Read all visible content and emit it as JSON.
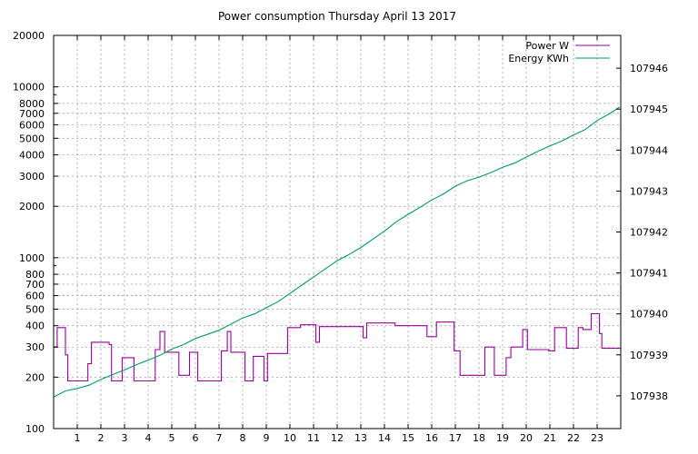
{
  "chart_data": {
    "type": "line",
    "title": "Power consumption Thursday April 13 2017",
    "x_ticks": [
      1,
      2,
      3,
      4,
      5,
      6,
      7,
      8,
      9,
      10,
      11,
      12,
      13,
      14,
      15,
      16,
      17,
      18,
      19,
      20,
      21,
      22,
      23
    ],
    "x_range": [
      0,
      24
    ],
    "y_left": {
      "scale": "log",
      "range": [
        100,
        20000
      ],
      "ticks": [
        100,
        200,
        300,
        400,
        500,
        600,
        700,
        800,
        1000,
        2000,
        3000,
        4000,
        5000,
        6000,
        7000,
        8000,
        10000,
        20000
      ]
    },
    "y_right": {
      "scale": "linear",
      "range": [
        107937.2,
        107946.8
      ],
      "ticks": [
        107938,
        107939,
        107940,
        107941,
        107942,
        107943,
        107944,
        107945,
        107946
      ]
    },
    "grid": true,
    "legend_position": "top-right",
    "series": [
      {
        "name": "Power W",
        "axis": "left",
        "color": "#990099",
        "points": [
          [
            0.0,
            300
          ],
          [
            0.15,
            300
          ],
          [
            0.15,
            390
          ],
          [
            0.5,
            390
          ],
          [
            0.5,
            270
          ],
          [
            0.6,
            270
          ],
          [
            0.6,
            190
          ],
          [
            1.45,
            190
          ],
          [
            1.45,
            240
          ],
          [
            1.6,
            240
          ],
          [
            1.6,
            320
          ],
          [
            2.35,
            320
          ],
          [
            2.35,
            310
          ],
          [
            2.45,
            310
          ],
          [
            2.45,
            190
          ],
          [
            2.9,
            190
          ],
          [
            2.9,
            260
          ],
          [
            3.4,
            260
          ],
          [
            3.4,
            190
          ],
          [
            4.3,
            190
          ],
          [
            4.3,
            290
          ],
          [
            4.5,
            290
          ],
          [
            4.5,
            370
          ],
          [
            4.7,
            370
          ],
          [
            4.7,
            280
          ],
          [
            5.3,
            280
          ],
          [
            5.3,
            205
          ],
          [
            5.75,
            205
          ],
          [
            5.75,
            280
          ],
          [
            6.1,
            280
          ],
          [
            6.1,
            190
          ],
          [
            7.1,
            190
          ],
          [
            7.1,
            285
          ],
          [
            7.35,
            285
          ],
          [
            7.35,
            370
          ],
          [
            7.5,
            370
          ],
          [
            7.5,
            280
          ],
          [
            8.1,
            280
          ],
          [
            8.1,
            190
          ],
          [
            8.45,
            190
          ],
          [
            8.45,
            265
          ],
          [
            8.9,
            265
          ],
          [
            8.9,
            190
          ],
          [
            9.05,
            190
          ],
          [
            9.05,
            275
          ],
          [
            9.9,
            275
          ],
          [
            9.9,
            390
          ],
          [
            10.45,
            390
          ],
          [
            10.45,
            405
          ],
          [
            11.1,
            405
          ],
          [
            11.1,
            320
          ],
          [
            11.25,
            320
          ],
          [
            11.25,
            395
          ],
          [
            13.1,
            395
          ],
          [
            13.1,
            340
          ],
          [
            13.25,
            340
          ],
          [
            13.25,
            415
          ],
          [
            14.45,
            415
          ],
          [
            14.45,
            400
          ],
          [
            15.8,
            400
          ],
          [
            15.8,
            345
          ],
          [
            16.2,
            345
          ],
          [
            16.2,
            420
          ],
          [
            16.95,
            420
          ],
          [
            16.95,
            285
          ],
          [
            17.2,
            285
          ],
          [
            17.2,
            205
          ],
          [
            18.25,
            205
          ],
          [
            18.25,
            300
          ],
          [
            18.65,
            300
          ],
          [
            18.65,
            205
          ],
          [
            19.15,
            205
          ],
          [
            19.15,
            260
          ],
          [
            19.35,
            260
          ],
          [
            19.35,
            300
          ],
          [
            19.85,
            300
          ],
          [
            19.85,
            380
          ],
          [
            20.05,
            380
          ],
          [
            20.05,
            290
          ],
          [
            20.95,
            290
          ],
          [
            20.95,
            285
          ],
          [
            21.2,
            285
          ],
          [
            21.2,
            390
          ],
          [
            21.7,
            390
          ],
          [
            21.7,
            295
          ],
          [
            22.2,
            295
          ],
          [
            22.2,
            390
          ],
          [
            22.4,
            390
          ],
          [
            22.4,
            380
          ],
          [
            22.75,
            380
          ],
          [
            22.75,
            470
          ],
          [
            23.1,
            470
          ],
          [
            23.1,
            360
          ],
          [
            23.2,
            360
          ],
          [
            23.2,
            295
          ],
          [
            24.0,
            295
          ]
        ]
      },
      {
        "name": "Energy KWh",
        "axis": "right",
        "color": "#009966",
        "points": [
          [
            0.0,
            107937.97
          ],
          [
            0.5,
            107938.12
          ],
          [
            1.0,
            107938.18
          ],
          [
            1.5,
            107938.26
          ],
          [
            2.0,
            107938.4
          ],
          [
            2.5,
            107938.52
          ],
          [
            3.0,
            107938.63
          ],
          [
            3.5,
            107938.76
          ],
          [
            4.0,
            107938.87
          ],
          [
            4.5,
            107938.99
          ],
          [
            5.0,
            107939.14
          ],
          [
            5.5,
            107939.25
          ],
          [
            6.0,
            107939.4
          ],
          [
            6.5,
            107939.5
          ],
          [
            7.0,
            107939.6
          ],
          [
            7.5,
            107939.75
          ],
          [
            8.0,
            107939.9
          ],
          [
            8.5,
            107940.0
          ],
          [
            9.0,
            107940.15
          ],
          [
            9.5,
            107940.3
          ],
          [
            10.0,
            107940.5
          ],
          [
            10.5,
            107940.7
          ],
          [
            11.0,
            107940.9
          ],
          [
            11.5,
            107941.1
          ],
          [
            12.0,
            107941.3
          ],
          [
            12.5,
            107941.45
          ],
          [
            13.0,
            107941.62
          ],
          [
            13.5,
            107941.82
          ],
          [
            14.0,
            107942.02
          ],
          [
            14.5,
            107942.25
          ],
          [
            15.0,
            107942.43
          ],
          [
            15.5,
            107942.6
          ],
          [
            16.0,
            107942.78
          ],
          [
            16.5,
            107942.93
          ],
          [
            17.0,
            107943.12
          ],
          [
            17.5,
            107943.25
          ],
          [
            18.0,
            107943.34
          ],
          [
            18.5,
            107943.45
          ],
          [
            19.0,
            107943.58
          ],
          [
            19.5,
            107943.68
          ],
          [
            20.0,
            107943.83
          ],
          [
            20.5,
            107943.97
          ],
          [
            21.0,
            107944.1
          ],
          [
            21.5,
            107944.22
          ],
          [
            22.0,
            107944.37
          ],
          [
            22.5,
            107944.5
          ],
          [
            23.0,
            107944.72
          ],
          [
            23.5,
            107944.88
          ],
          [
            23.95,
            107945.05
          ]
        ]
      }
    ]
  }
}
